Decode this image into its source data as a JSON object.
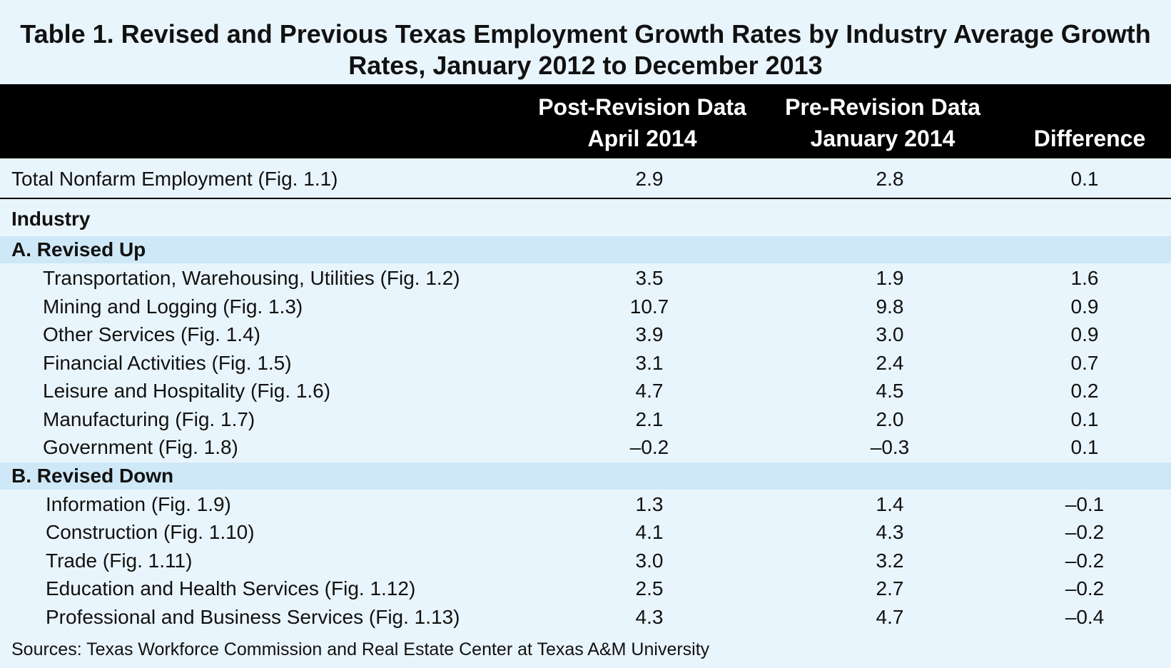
{
  "title_lines": [
    "Table 1. Revised and Previous Texas Employment Growth Rates by Industry Average Growth",
    "Rates, January 2012 to December 2013"
  ],
  "table": {
    "headers": [
      [
        "Post-Revision Data",
        "April 2014"
      ],
      [
        "Pre-Revision Data",
        "January 2014"
      ],
      [
        "Difference"
      ]
    ],
    "total": {
      "label": "Total Nonfarm Employment (Fig. 1.1)",
      "values": [
        "2.9",
        "2.8",
        "0.1"
      ]
    },
    "industry_heading": "Industry",
    "sections": [
      {
        "name": "A. Revised Up",
        "rows": [
          {
            "label": "Transportation, Warehousing, Utilities (Fig. 1.2)",
            "values": [
              "3.5",
              "1.9",
              "1.6"
            ]
          },
          {
            "label": "Mining and Logging (Fig. 1.3)",
            "values": [
              "10.7",
              "9.8",
              "0.9"
            ]
          },
          {
            "label": "Other Services (Fig. 1.4)",
            "values": [
              "3.9",
              "3.0",
              "0.9"
            ]
          },
          {
            "label": "Financial Activities (Fig. 1.5)",
            "values": [
              "3.1",
              "2.4",
              "0.7"
            ]
          },
          {
            "label": "Leisure and Hospitality (Fig. 1.6)",
            "values": [
              "4.7",
              "4.5",
              "0.2"
            ]
          },
          {
            "label": "Manufacturing (Fig. 1.7)",
            "values": [
              "2.1",
              "2.0",
              "0.1"
            ]
          },
          {
            "label": "Government (Fig. 1.8)",
            "values": [
              "–0.2",
              "–0.3",
              "0.1"
            ]
          }
        ]
      },
      {
        "name": "B. Revised Down",
        "rows": [
          {
            "label": "Information (Fig. 1.9)",
            "values": [
              "1.3",
              "1.4",
              "–0.1"
            ]
          },
          {
            "label": "Construction (Fig. 1.10)",
            "values": [
              "4.1",
              "4.3",
              "–0.2"
            ]
          },
          {
            "label": "Trade (Fig. 1.11)",
            "values": [
              "3.0",
              "3.2",
              "–0.2"
            ]
          },
          {
            "label": "Education and Health Services (Fig. 1.12)",
            "values": [
              "2.5",
              "2.7",
              "–0.2"
            ]
          },
          {
            "label": "Professional and Business Services (Fig. 1.13)",
            "values": [
              "4.3",
              "4.7",
              "–0.4"
            ]
          }
        ]
      }
    ]
  },
  "sources": "Sources: Texas Workforce Commission and Real Estate Center at Texas A&M University"
}
